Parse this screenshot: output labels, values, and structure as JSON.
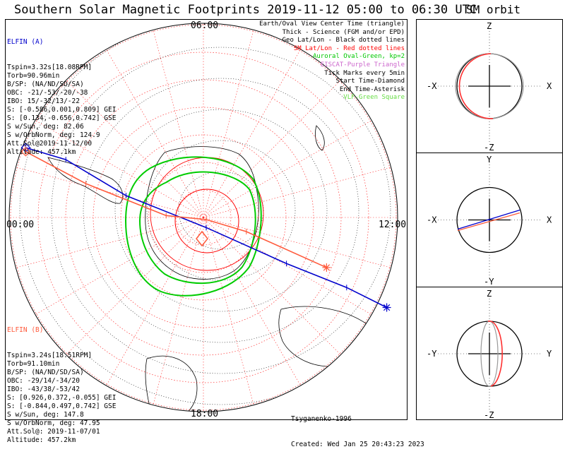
{
  "title": "Southern Solar Magnetic Footprints 2019-11-12 05:00 to 06:30 UTC",
  "sm_title": "SM orbit",
  "time_labels": {
    "top": "06:00",
    "left": "00:00",
    "right": "12:00",
    "bottom": "18:00"
  },
  "elfin_a": {
    "header": "ELFIN (A)",
    "lines": [
      "Tspin=3.32s[18.08RPM]",
      "Torb=90.96min",
      "B/SP: (NA/ND/SD/SA)",
      "OBC: -21/-53/-20/-38",
      "IBO: 15/-32/13/-22",
      "S: [-0.586,0.001,0.809] GEI",
      "S: [0.134,-0.656,0.742] GSE",
      "S w/Sun, deg: 82.06",
      "S w/OrbNorm, deg: 124.9",
      "Att.Sol@2019-11-12/00",
      "Altitude: 457.1km"
    ],
    "color": "#0000cc"
  },
  "elfin_b": {
    "header": "ELFIN (B)",
    "lines": [
      "Tspin=3.24s[18.51RPM]",
      "Torb=91.10min",
      "B/SP: (NA/ND/SD/SA)",
      "OBC: -29/14/-34/20",
      "IBO: -43/38/-53/42",
      "S: [0.926,0.372,-0.055] GEI",
      "S: [-0.844,0.497,0.742] GSE",
      "S w/Sun, deg: 147.8",
      "S w/OrbNorm, deg: 47.95",
      "Att.Sol@: 2019-11-07/01",
      "Altitude: 457.2km"
    ],
    "color": "#ff5a3c"
  },
  "legend": [
    {
      "text": "Earth/Oval View Center Time (triangle)",
      "color": "#000000"
    },
    {
      "text": "Thick - Science (FGM and/or EPD)",
      "color": "#000000"
    },
    {
      "text": "Geo Lat/Lon - Black dotted lines",
      "color": "#000000"
    },
    {
      "text": "SM Lat/Lon - Red dotted lines",
      "color": "#ff0000"
    },
    {
      "text": "Auroral Oval-Green, kp=2",
      "color": "#00c800"
    },
    {
      "text": "EISCAT-Purple Triangle",
      "color": "#cc66cc"
    },
    {
      "text": "Tick Marks every 5min",
      "color": "#000000"
    },
    {
      "text": "Start Time-Diamond",
      "color": "#000000"
    },
    {
      "text": "End Time-Asterisk",
      "color": "#000000"
    },
    {
      "text": "VLF-Green Square",
      "color": "#66dd44"
    }
  ],
  "credits": {
    "author": "Tsyganenko-1996",
    "created": "Created: Wed Jan 25 20:43:23 2023"
  },
  "sm_panels": [
    {
      "top": "Z",
      "bottom": "-Z",
      "left": "-X",
      "right": "X"
    },
    {
      "top": "Y",
      "bottom": "-Y",
      "left": "-X",
      "right": "X"
    },
    {
      "top": "Z",
      "bottom": "-Z",
      "left": "-Y",
      "right": "Y"
    }
  ],
  "chart_data": {
    "type": "line",
    "projection": "polar (southern hemisphere, SM coordinates)",
    "series": [
      {
        "name": "ELFIN (A)",
        "color": "#0000cc",
        "points_screen_frac": [
          [
            0.05,
            0.32
          ],
          [
            0.15,
            0.35
          ],
          [
            0.3,
            0.44
          ],
          [
            0.5,
            0.52
          ],
          [
            0.7,
            0.61
          ],
          [
            0.85,
            0.67
          ],
          [
            0.95,
            0.72
          ]
        ]
      },
      {
        "name": "ELFIN (B)",
        "color": "#ff5a3c",
        "points_screen_frac": [
          [
            0.05,
            0.33
          ],
          [
            0.2,
            0.41
          ],
          [
            0.4,
            0.49
          ],
          [
            0.5,
            0.5
          ],
          [
            0.6,
            0.53
          ],
          [
            0.8,
            0.62
          ]
        ]
      }
    ]
  }
}
